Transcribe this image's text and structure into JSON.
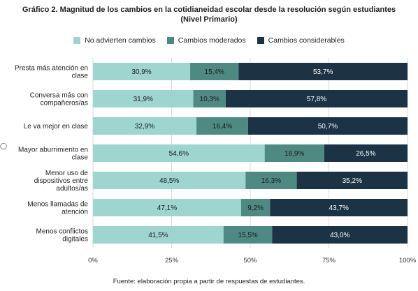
{
  "title_line1": "Gráfico 2. Magnitud de los cambios en la cotidianeidad escolar desde la resolución según estudiantes",
  "title_line2": "(Nivel Primario)",
  "source": "Fuente: elaboración propia a partir de respuestas de estudiantes.",
  "chart_data": {
    "type": "bar",
    "orientation": "horizontal",
    "stacked": true,
    "categories": [
      [
        "Presta más atención en",
        "clase"
      ],
      [
        "Conversa más con",
        "compañeros/as"
      ],
      [
        "Le va mejor en clase"
      ],
      [
        "Mayor aburrimiento en",
        "clase"
      ],
      [
        "Menor uso de",
        "dispositivos entre",
        "adultos/as"
      ],
      [
        "Menos llamadas de",
        "atención"
      ],
      [
        "Menos conflictos",
        "digitales"
      ]
    ],
    "series": [
      {
        "name": "No advierten cambios",
        "color": "#9ed5cf",
        "values": [
          30.9,
          31.9,
          32.9,
          54.6,
          48.5,
          47.1,
          41.5
        ],
        "labels": [
          "30,9%",
          "31,9%",
          "32,9%",
          "54,6%",
          "48,5%",
          "47,1%",
          "41,5%"
        ]
      },
      {
        "name": "Cambios moderados",
        "color": "#4f8a82",
        "values": [
          15.4,
          10.3,
          16.4,
          18.9,
          16.3,
          9.2,
          15.5
        ],
        "labels": [
          "15,4%",
          "10,3%",
          "16,4%",
          "18,9%",
          "16,3%",
          "9,2%",
          "15,5%"
        ]
      },
      {
        "name": "Cambios considerables",
        "color": "#1b3345",
        "values": [
          53.7,
          57.8,
          50.7,
          26.5,
          35.2,
          43.7,
          43.0
        ],
        "labels": [
          "53,7%",
          "57,8%",
          "50,7%",
          "26,5%",
          "35,2%",
          "43,7%",
          "43,0%"
        ]
      }
    ],
    "xlim": [
      0,
      100
    ],
    "xticks": [
      "0%",
      "25%",
      "50%",
      "75%",
      "100%"
    ],
    "grid": true,
    "legend_position": "top"
  }
}
